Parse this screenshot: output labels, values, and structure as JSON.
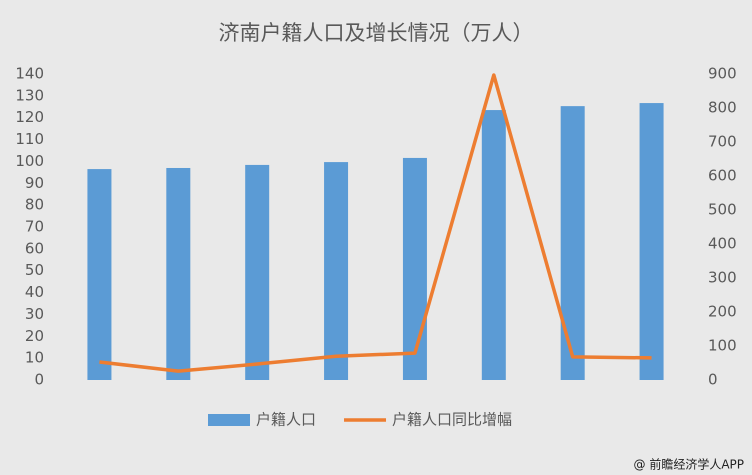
{
  "chart_data": {
    "type": "bar_line",
    "title": "济南户籍人口及增长情况（万人）",
    "categories": [
      null,
      null,
      null,
      null,
      null,
      null,
      null,
      null
    ],
    "series": [
      {
        "name": "户籍人口",
        "type": "bar",
        "color": "#5b9bd5",
        "values": [
          96.5,
          97,
          98.4,
          99.7,
          101.6,
          123.5,
          125.3,
          126.7
        ]
      },
      {
        "name": "户籍人口同比增幅",
        "type": "line",
        "color": "#ed7d31",
        "axis": "y2",
        "values": [
          53,
          26,
          47,
          70,
          79,
          897,
          68,
          65
        ]
      }
    ],
    "ylim": [
      0,
      140
    ],
    "yticks": [
      0,
      10,
      20,
      30,
      40,
      50,
      60,
      70,
      80,
      90,
      100,
      110,
      120,
      130,
      140
    ],
    "y2lim": [
      0,
      900
    ],
    "y2ticks": [
      0,
      100,
      200,
      300,
      400,
      500,
      600,
      700,
      800,
      900
    ],
    "legend": "bottom",
    "source": "@ 前瞻经济学人APP"
  }
}
